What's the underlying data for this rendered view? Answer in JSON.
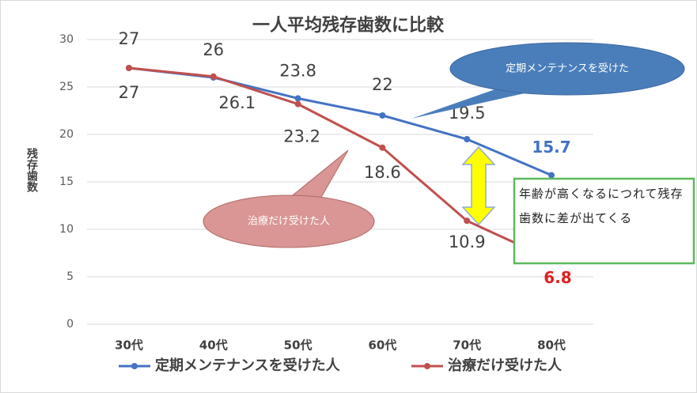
{
  "chart_data": {
    "type": "line",
    "title": "一人平均残存歯数に比較",
    "y_label": "残存歯数",
    "categories": [
      "30代",
      "40代",
      "50代",
      "60代",
      "70代",
      "80代"
    ],
    "series": [
      {
        "name": "定期メンテナンスを受けた人",
        "color": "#4472c4",
        "values": [
          27,
          26,
          23.8,
          22,
          19.5,
          15.7
        ]
      },
      {
        "name": "治療だけ受けた人",
        "color": "#c0504d",
        "values": [
          27,
          26.1,
          23.2,
          18.6,
          10.9,
          6.8
        ]
      }
    ],
    "ylim": [
      0,
      30
    ],
    "yticks": [
      0,
      5,
      10,
      15,
      20,
      25,
      30
    ],
    "grid": true,
    "legend": "bottom",
    "annotations": [
      "定期メンテナンスを受けた",
      "治療だけ受けた人",
      "年齢が高くなるにつれて残存歯数に差が出てくる"
    ]
  }
}
